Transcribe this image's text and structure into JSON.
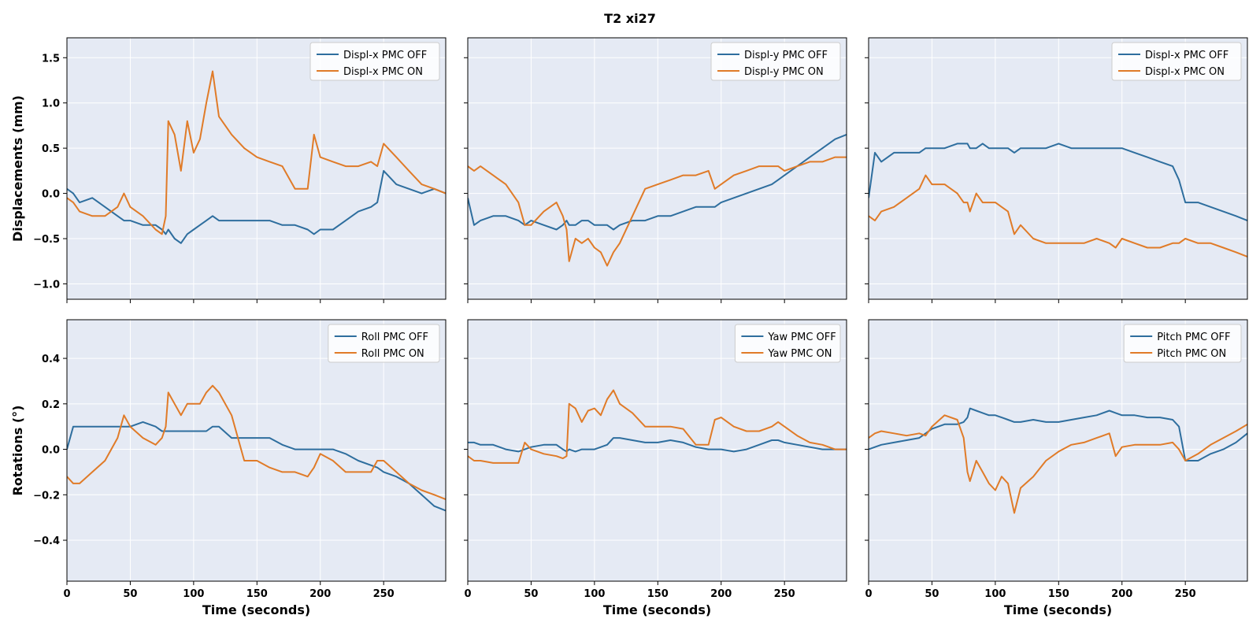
{
  "figure": {
    "title": "T2  xi27",
    "colors": {
      "off": "#2e6e9e",
      "on": "#e07b28",
      "panel_bg": "#e5eaf4",
      "grid": "#ffffff"
    }
  },
  "rows": [
    {
      "ylabel": "Displacements (mm)",
      "ylim": [
        -1.17,
        1.72
      ],
      "yticks": [
        -1.0,
        -0.5,
        0.0,
        0.5,
        1.0,
        1.5
      ],
      "ytick_labels": [
        "−1.0",
        "−0.5",
        "0.0",
        "0.5",
        "1.0",
        "1.5"
      ]
    },
    {
      "ylabel": "Rotations (°)",
      "ylim": [
        -0.58,
        0.57
      ],
      "yticks": [
        -0.4,
        -0.2,
        0.0,
        0.2,
        0.4
      ],
      "ytick_labels": [
        "−0.4",
        "−0.2",
        "0.0",
        "0.2",
        "0.4"
      ]
    }
  ],
  "x_axis": {
    "xlabel": "Time (seconds)",
    "xlim": [
      0,
      299
    ],
    "xticks": [
      0,
      50,
      100,
      150,
      200,
      250
    ],
    "xtick_labels": [
      "0",
      "50",
      "100",
      "150",
      "200",
      "250"
    ]
  },
  "chart_data": [
    {
      "type": "line",
      "legend": "top-right",
      "grid": true,
      "x": [
        0,
        5,
        10,
        20,
        30,
        40,
        45,
        50,
        60,
        70,
        75,
        78,
        80,
        85,
        90,
        95,
        100,
        105,
        110,
        115,
        120,
        130,
        140,
        150,
        160,
        170,
        180,
        190,
        195,
        200,
        210,
        220,
        230,
        240,
        245,
        250,
        260,
        270,
        280,
        290,
        299
      ],
      "series": [
        {
          "name": "Displ-x PMC OFF",
          "values": [
            0.05,
            0.0,
            -0.1,
            -0.05,
            -0.15,
            -0.25,
            -0.3,
            -0.3,
            -0.35,
            -0.35,
            -0.4,
            -0.45,
            -0.4,
            -0.5,
            -0.55,
            -0.45,
            -0.4,
            -0.35,
            -0.3,
            -0.25,
            -0.3,
            -0.3,
            -0.3,
            -0.3,
            -0.3,
            -0.35,
            -0.35,
            -0.4,
            -0.45,
            -0.4,
            -0.4,
            -0.3,
            -0.2,
            -0.15,
            -0.1,
            0.25,
            0.1,
            0.05,
            0.0,
            0.05,
            0.0
          ]
        },
        {
          "name": "Displ-x PMC ON",
          "values": [
            -0.05,
            -0.1,
            -0.2,
            -0.25,
            -0.25,
            -0.15,
            0.0,
            -0.15,
            -0.25,
            -0.4,
            -0.45,
            -0.25,
            0.8,
            0.65,
            0.25,
            0.8,
            0.45,
            0.6,
            1.0,
            1.35,
            0.85,
            0.65,
            0.5,
            0.4,
            0.35,
            0.3,
            0.05,
            0.05,
            0.65,
            0.4,
            0.35,
            0.3,
            0.3,
            0.35,
            0.3,
            0.55,
            0.4,
            0.25,
            0.1,
            0.05,
            0.0
          ]
        }
      ]
    },
    {
      "type": "line",
      "legend": "top-right",
      "grid": true,
      "x": [
        0,
        5,
        10,
        20,
        30,
        40,
        45,
        50,
        60,
        70,
        75,
        78,
        80,
        85,
        90,
        95,
        100,
        105,
        110,
        115,
        120,
        130,
        140,
        150,
        160,
        170,
        180,
        190,
        195,
        200,
        210,
        220,
        230,
        240,
        245,
        250,
        260,
        270,
        280,
        290,
        299
      ],
      "series": [
        {
          "name": "Displ-y PMC OFF",
          "values": [
            -0.05,
            -0.35,
            -0.3,
            -0.25,
            -0.25,
            -0.3,
            -0.35,
            -0.3,
            -0.35,
            -0.4,
            -0.35,
            -0.3,
            -0.35,
            -0.35,
            -0.3,
            -0.3,
            -0.35,
            -0.35,
            -0.35,
            -0.4,
            -0.35,
            -0.3,
            -0.3,
            -0.25,
            -0.25,
            -0.2,
            -0.15,
            -0.15,
            -0.15,
            -0.1,
            -0.05,
            0.0,
            0.05,
            0.1,
            0.15,
            0.2,
            0.3,
            0.4,
            0.5,
            0.6,
            0.65
          ]
        },
        {
          "name": "Displ-y PMC ON",
          "values": [
            0.3,
            0.25,
            0.3,
            0.2,
            0.1,
            -0.1,
            -0.35,
            -0.35,
            -0.2,
            -0.1,
            -0.25,
            -0.4,
            -0.75,
            -0.5,
            -0.55,
            -0.5,
            -0.6,
            -0.65,
            -0.8,
            -0.65,
            -0.55,
            -0.25,
            0.05,
            0.1,
            0.15,
            0.2,
            0.2,
            0.25,
            0.05,
            0.1,
            0.2,
            0.25,
            0.3,
            0.3,
            0.3,
            0.25,
            0.3,
            0.35,
            0.35,
            0.4,
            0.4
          ]
        }
      ]
    },
    {
      "type": "line",
      "legend": "top-right",
      "grid": true,
      "x": [
        0,
        5,
        10,
        20,
        30,
        40,
        45,
        50,
        60,
        70,
        75,
        78,
        80,
        85,
        90,
        95,
        100,
        105,
        110,
        115,
        120,
        130,
        140,
        150,
        160,
        170,
        180,
        190,
        195,
        200,
        210,
        220,
        230,
        240,
        245,
        250,
        260,
        270,
        280,
        290,
        299
      ],
      "series": [
        {
          "name": "Displ-x PMC OFF",
          "values": [
            -0.05,
            0.45,
            0.35,
            0.45,
            0.45,
            0.45,
            0.5,
            0.5,
            0.5,
            0.55,
            0.55,
            0.55,
            0.5,
            0.5,
            0.55,
            0.5,
            0.5,
            0.5,
            0.5,
            0.45,
            0.5,
            0.5,
            0.5,
            0.55,
            0.5,
            0.5,
            0.5,
            0.5,
            0.5,
            0.5,
            0.45,
            0.4,
            0.35,
            0.3,
            0.15,
            -0.1,
            -0.1,
            -0.15,
            -0.2,
            -0.25,
            -0.3
          ]
        },
        {
          "name": "Displ-x PMC ON",
          "values": [
            -0.25,
            -0.3,
            -0.2,
            -0.15,
            -0.05,
            0.05,
            0.2,
            0.1,
            0.1,
            0.0,
            -0.1,
            -0.1,
            -0.2,
            0.0,
            -0.1,
            -0.1,
            -0.1,
            -0.15,
            -0.2,
            -0.45,
            -0.35,
            -0.5,
            -0.55,
            -0.55,
            -0.55,
            -0.55,
            -0.5,
            -0.55,
            -0.6,
            -0.5,
            -0.55,
            -0.6,
            -0.6,
            -0.55,
            -0.55,
            -0.5,
            -0.55,
            -0.55,
            -0.6,
            -0.65,
            -0.7
          ]
        }
      ]
    },
    {
      "type": "line",
      "legend": "top-right",
      "grid": true,
      "x": [
        0,
        5,
        10,
        20,
        30,
        40,
        45,
        50,
        60,
        70,
        75,
        78,
        80,
        85,
        90,
        95,
        100,
        105,
        110,
        115,
        120,
        130,
        140,
        150,
        160,
        170,
        180,
        190,
        195,
        200,
        210,
        220,
        230,
        240,
        245,
        250,
        260,
        270,
        280,
        290,
        299
      ],
      "series": [
        {
          "name": "Roll PMC OFF",
          "values": [
            0.0,
            0.1,
            0.1,
            0.1,
            0.1,
            0.1,
            0.1,
            0.1,
            0.12,
            0.1,
            0.08,
            0.08,
            0.08,
            0.08,
            0.08,
            0.08,
            0.08,
            0.08,
            0.08,
            0.1,
            0.1,
            0.05,
            0.05,
            0.05,
            0.05,
            0.02,
            0.0,
            0.0,
            0.0,
            0.0,
            0.0,
            -0.02,
            -0.05,
            -0.07,
            -0.08,
            -0.1,
            -0.12,
            -0.15,
            -0.2,
            -0.25,
            -0.27
          ]
        },
        {
          "name": "Roll PMC ON",
          "values": [
            -0.12,
            -0.15,
            -0.15,
            -0.1,
            -0.05,
            0.05,
            0.15,
            0.1,
            0.05,
            0.02,
            0.05,
            0.1,
            0.25,
            0.2,
            0.15,
            0.2,
            0.2,
            0.2,
            0.25,
            0.28,
            0.25,
            0.15,
            -0.05,
            -0.05,
            -0.08,
            -0.1,
            -0.1,
            -0.12,
            -0.08,
            -0.02,
            -0.05,
            -0.1,
            -0.1,
            -0.1,
            -0.05,
            -0.05,
            -0.1,
            -0.15,
            -0.18,
            -0.2,
            -0.22
          ]
        }
      ]
    },
    {
      "type": "line",
      "legend": "top-right",
      "grid": true,
      "x": [
        0,
        5,
        10,
        20,
        30,
        40,
        45,
        50,
        60,
        70,
        75,
        78,
        80,
        85,
        90,
        95,
        100,
        105,
        110,
        115,
        120,
        130,
        140,
        150,
        160,
        170,
        180,
        190,
        195,
        200,
        210,
        220,
        230,
        240,
        245,
        250,
        260,
        270,
        280,
        290,
        299
      ],
      "series": [
        {
          "name": "Yaw PMC OFF",
          "values": [
            0.03,
            0.03,
            0.02,
            0.02,
            0.0,
            -0.01,
            0.0,
            0.01,
            0.02,
            0.02,
            0.0,
            -0.01,
            0.0,
            -0.01,
            0.0,
            0.0,
            0.0,
            0.01,
            0.02,
            0.05,
            0.05,
            0.04,
            0.03,
            0.03,
            0.04,
            0.03,
            0.01,
            0.0,
            0.0,
            0.0,
            -0.01,
            0.0,
            0.02,
            0.04,
            0.04,
            0.03,
            0.02,
            0.01,
            0.0,
            0.0,
            0.0
          ]
        },
        {
          "name": "Yaw PMC ON",
          "values": [
            -0.03,
            -0.05,
            -0.05,
            -0.06,
            -0.06,
            -0.06,
            0.03,
            0.0,
            -0.02,
            -0.03,
            -0.04,
            -0.03,
            0.2,
            0.18,
            0.12,
            0.17,
            0.18,
            0.15,
            0.22,
            0.26,
            0.2,
            0.16,
            0.1,
            0.1,
            0.1,
            0.09,
            0.02,
            0.02,
            0.13,
            0.14,
            0.1,
            0.08,
            0.08,
            0.1,
            0.12,
            0.1,
            0.06,
            0.03,
            0.02,
            0.0,
            0.0
          ]
        }
      ]
    },
    {
      "type": "line",
      "legend": "top-right",
      "grid": true,
      "x": [
        0,
        5,
        10,
        20,
        30,
        40,
        45,
        50,
        60,
        70,
        75,
        78,
        80,
        85,
        90,
        95,
        100,
        105,
        110,
        115,
        120,
        130,
        140,
        150,
        160,
        170,
        180,
        190,
        195,
        200,
        210,
        220,
        230,
        240,
        245,
        250,
        260,
        270,
        280,
        290,
        299
      ],
      "series": [
        {
          "name": "Pitch PMC OFF",
          "values": [
            0.0,
            0.01,
            0.02,
            0.03,
            0.04,
            0.05,
            0.07,
            0.09,
            0.11,
            0.11,
            0.12,
            0.14,
            0.18,
            0.17,
            0.16,
            0.15,
            0.15,
            0.14,
            0.13,
            0.12,
            0.12,
            0.13,
            0.12,
            0.12,
            0.13,
            0.14,
            0.15,
            0.17,
            0.16,
            0.15,
            0.15,
            0.14,
            0.14,
            0.13,
            0.1,
            -0.05,
            -0.05,
            -0.02,
            0.0,
            0.03,
            0.07
          ]
        },
        {
          "name": "Pitch PMC ON",
          "values": [
            0.05,
            0.07,
            0.08,
            0.07,
            0.06,
            0.07,
            0.06,
            0.1,
            0.15,
            0.13,
            0.05,
            -0.1,
            -0.14,
            -0.05,
            -0.1,
            -0.15,
            -0.18,
            -0.12,
            -0.15,
            -0.28,
            -0.17,
            -0.12,
            -0.05,
            -0.01,
            0.02,
            0.03,
            0.05,
            0.07,
            -0.03,
            0.01,
            0.02,
            0.02,
            0.02,
            0.03,
            0.0,
            -0.05,
            -0.02,
            0.02,
            0.05,
            0.08,
            0.11
          ]
        }
      ]
    }
  ]
}
